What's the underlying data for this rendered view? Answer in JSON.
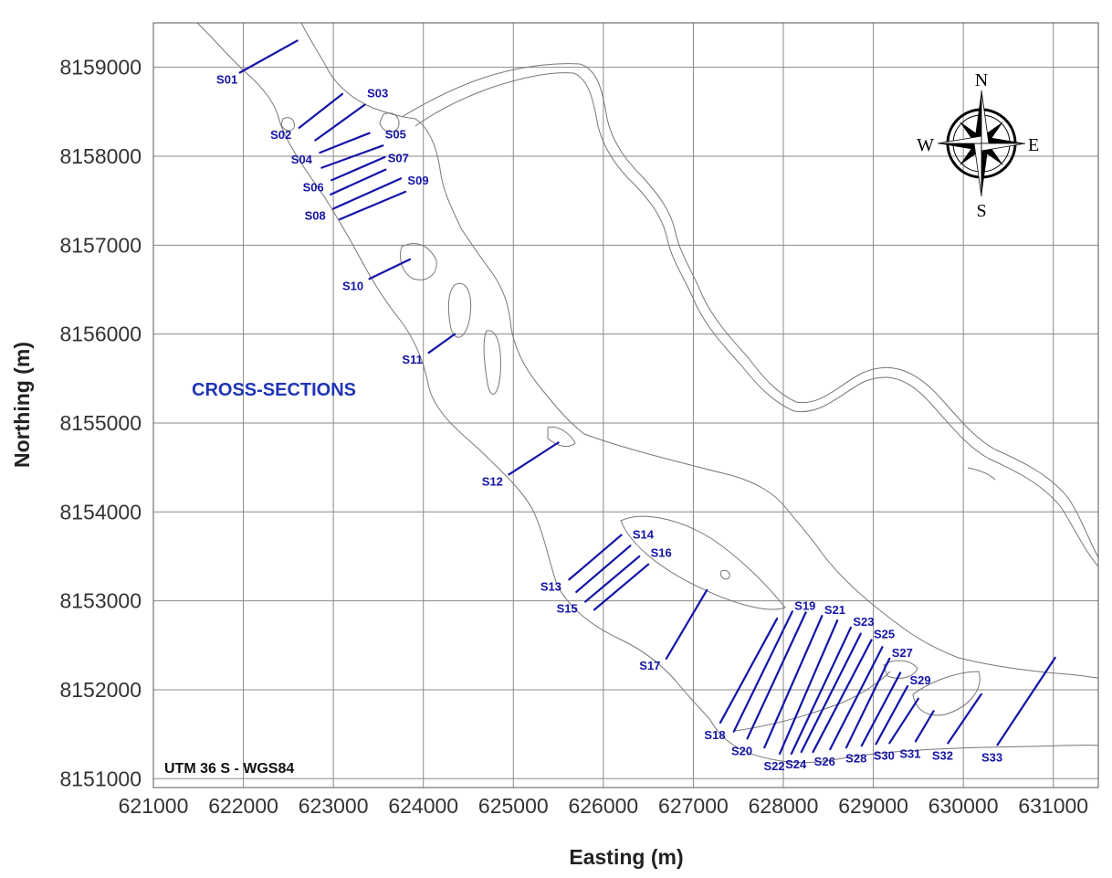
{
  "axes": {
    "xlabel": "Easting (m)",
    "ylabel": "Northing (m)",
    "xlim": [
      621000,
      631500
    ],
    "ylim": [
      8150900,
      8159500
    ],
    "xticks": [
      "621000",
      "622000",
      "623000",
      "624000",
      "625000",
      "626000",
      "627000",
      "628000",
      "629000",
      "630000",
      "631000"
    ],
    "yticks": [
      "8151000",
      "8152000",
      "8153000",
      "8154000",
      "8155000",
      "8156000",
      "8157000",
      "8158000",
      "8159000"
    ],
    "grid": true
  },
  "annotations": {
    "title": "CROSS-SECTIONS",
    "datum": "UTM 36 S - WGS84"
  },
  "compass": {
    "north": "N",
    "south": "S",
    "east": "E",
    "west": "W"
  },
  "colors": {
    "section_line": "#1414a8",
    "river_outline": "#777777",
    "grid": "#8a8a8a",
    "title": "#1f35b5"
  },
  "cross_sections": [
    {
      "id": "S01",
      "label": "S01",
      "start": [
        621960,
        8158940
      ],
      "end": [
        622600,
        8159300
      ]
    },
    {
      "id": "S02",
      "label": "S02",
      "start": [
        622620,
        8158320
      ],
      "end": [
        623100,
        8158700
      ]
    },
    {
      "id": "S03",
      "label": "S03",
      "start": [
        622800,
        8158180
      ],
      "end": [
        623350,
        8158580
      ]
    },
    {
      "id": "S04",
      "label": "S04",
      "start": [
        622850,
        8158040
      ],
      "end": [
        623400,
        8158260
      ]
    },
    {
      "id": "S05",
      "label": "S05",
      "start": [
        622870,
        8157870
      ],
      "end": [
        623550,
        8158120
      ]
    },
    {
      "id": "S06",
      "label": "S06",
      "start": [
        622980,
        8157730
      ],
      "end": [
        623570,
        8157990
      ]
    },
    {
      "id": "S07",
      "label": "S07",
      "start": [
        622970,
        8157570
      ],
      "end": [
        623580,
        8157850
      ]
    },
    {
      "id": "S08",
      "label": "S08",
      "start": [
        623000,
        8157410
      ],
      "end": [
        623750,
        8157750
      ]
    },
    {
      "id": "S09",
      "label": "S09",
      "start": [
        623070,
        8157290
      ],
      "end": [
        623800,
        8157600
      ]
    },
    {
      "id": "S10",
      "label": "S10",
      "start": [
        623400,
        8156620
      ],
      "end": [
        623850,
        8156840
      ]
    },
    {
      "id": "S11",
      "label": "S11",
      "start": [
        624060,
        8155790
      ],
      "end": [
        624350,
        8156000
      ]
    },
    {
      "id": "S12",
      "label": "S12",
      "start": [
        624950,
        8154420
      ],
      "end": [
        625500,
        8154780
      ]
    },
    {
      "id": "S13",
      "label": "S13",
      "start": [
        625620,
        8153240
      ],
      "end": [
        626200,
        8153740
      ]
    },
    {
      "id": "S14",
      "label": "S14",
      "start": [
        625700,
        8153100
      ],
      "end": [
        626300,
        8153620
      ]
    },
    {
      "id": "S15",
      "label": "S15",
      "start": [
        625800,
        8152990
      ],
      "end": [
        626400,
        8153500
      ]
    },
    {
      "id": "S16",
      "label": "S16",
      "start": [
        625900,
        8152900
      ],
      "end": [
        626500,
        8153410
      ]
    },
    {
      "id": "S17",
      "label": "S17",
      "start": [
        626700,
        8152350
      ],
      "end": [
        627150,
        8153120
      ]
    },
    {
      "id": "S18",
      "label": "S18",
      "start": [
        627300,
        8151630
      ],
      "end": [
        627930,
        8152800
      ]
    },
    {
      "id": "S19",
      "label": "S19",
      "start": [
        627450,
        8151530
      ],
      "end": [
        628100,
        8152880
      ]
    },
    {
      "id": "S20",
      "label": "S20",
      "start": [
        627600,
        8151450
      ],
      "end": [
        628250,
        8152870
      ]
    },
    {
      "id": "S21",
      "label": "S21",
      "start": [
        627790,
        8151350
      ],
      "end": [
        628430,
        8152830
      ]
    },
    {
      "id": "S22",
      "label": "S22",
      "start": [
        627960,
        8151280
      ],
      "end": [
        628600,
        8152780
      ]
    },
    {
      "id": "S23",
      "label": "S23",
      "start": [
        628090,
        8151280
      ],
      "end": [
        628750,
        8152700
      ]
    },
    {
      "id": "S24",
      "label": "S24",
      "start": [
        628200,
        8151300
      ],
      "end": [
        628860,
        8152630
      ]
    },
    {
      "id": "S25",
      "label": "S25",
      "start": [
        628330,
        8151300
      ],
      "end": [
        628980,
        8152560
      ]
    },
    {
      "id": "S26",
      "label": "S26",
      "start": [
        628520,
        8151330
      ],
      "end": [
        629100,
        8152480
      ]
    },
    {
      "id": "S27",
      "label": "S27",
      "start": [
        628700,
        8151350
      ],
      "end": [
        629180,
        8152350
      ]
    },
    {
      "id": "S28",
      "label": "S28",
      "start": [
        628870,
        8151370
      ],
      "end": [
        629300,
        8152190
      ]
    },
    {
      "id": "S29",
      "label": "S29",
      "start": [
        629030,
        8151390
      ],
      "end": [
        629380,
        8152040
      ]
    },
    {
      "id": "S30",
      "label": "S30",
      "start": [
        629180,
        8151400
      ],
      "end": [
        629500,
        8151900
      ]
    },
    {
      "id": "S31",
      "label": "S31",
      "start": [
        629470,
        8151420
      ],
      "end": [
        629670,
        8151760
      ]
    },
    {
      "id": "S32",
      "label": "S32",
      "start": [
        629830,
        8151400
      ],
      "end": [
        630200,
        8151950
      ]
    },
    {
      "id": "S33",
      "label": "S33",
      "start": [
        630380,
        8151380
      ],
      "end": [
        631020,
        8152360
      ]
    }
  ]
}
